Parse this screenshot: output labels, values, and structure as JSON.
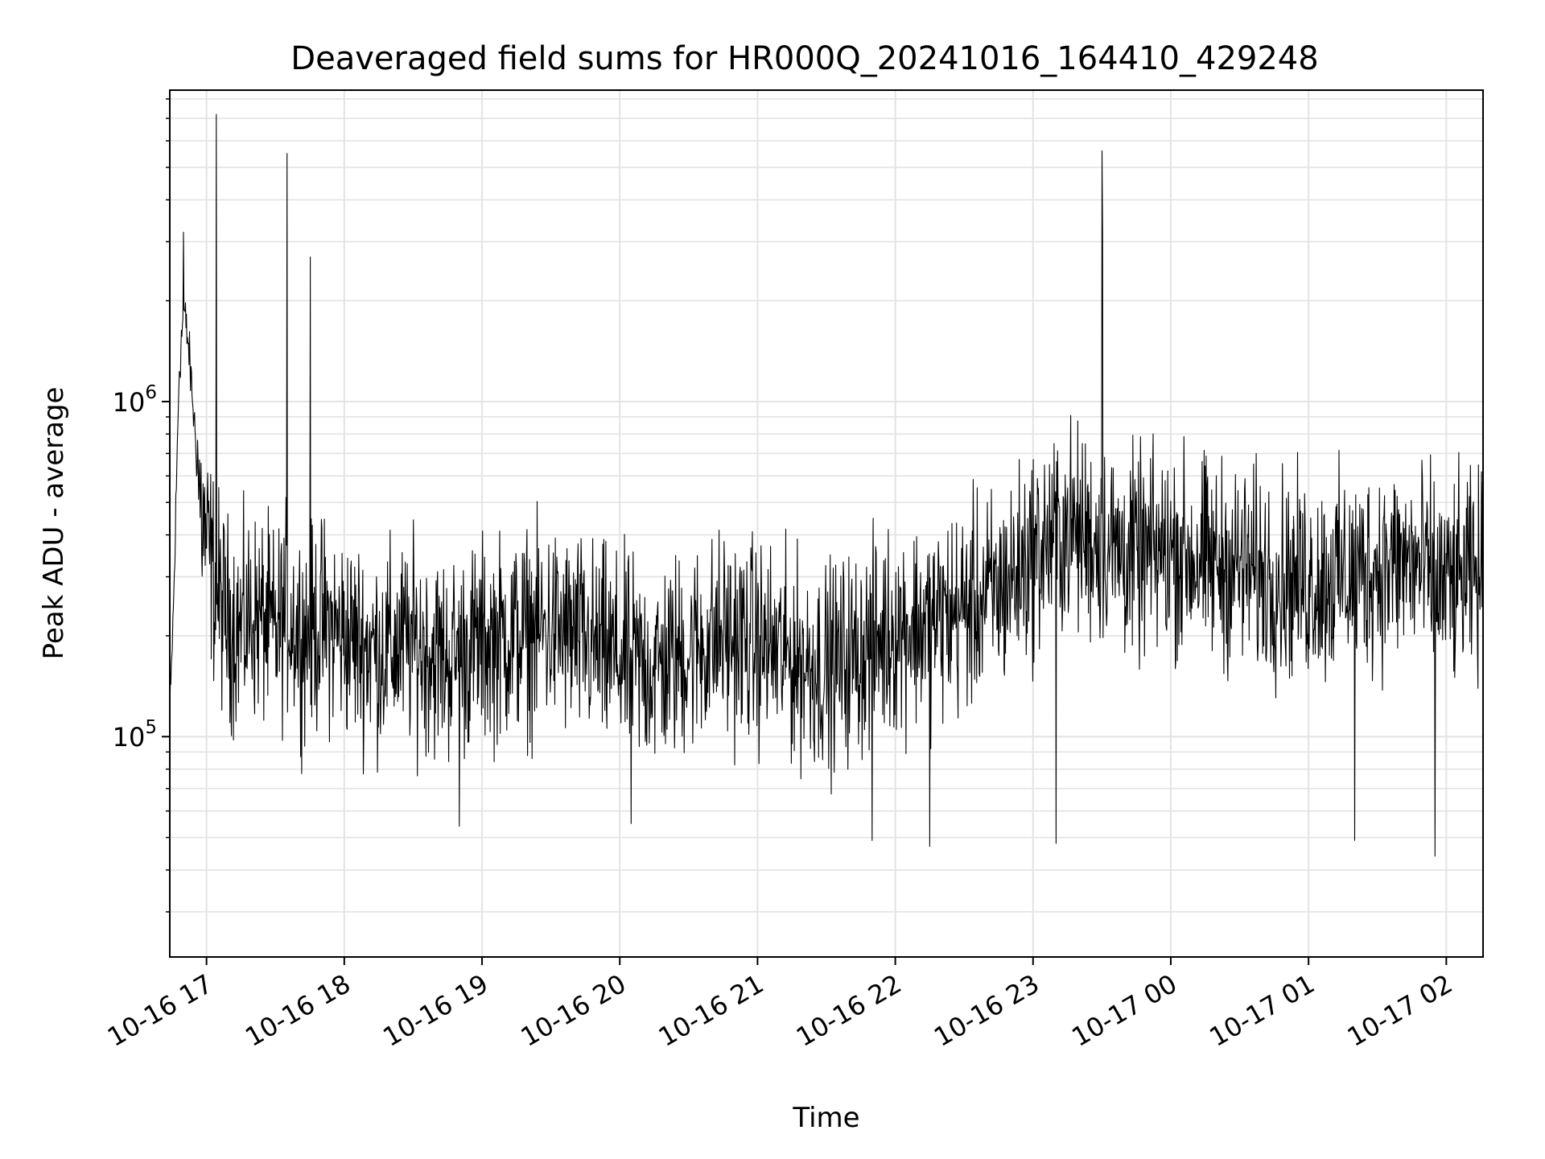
{
  "chart_data": {
    "type": "line",
    "title": "Deaveraged field sums for HR000Q_20241016_164410_429248",
    "xlabel": "Time",
    "ylabel": "Peak ADU - average",
    "yscale": "log",
    "ylim": [
      22000,
      8500000
    ],
    "xlim": [
      "2024-10-16 16:44",
      "2024-10-17 02:16"
    ],
    "x_ticks": [
      "10-16 17",
      "10-16 18",
      "10-16 19",
      "10-16 20",
      "10-16 21",
      "10-16 22",
      "10-16 23",
      "10-17 00",
      "10-17 01",
      "10-17 02"
    ],
    "y_ticks": [
      {
        "base": "10",
        "exp": "5",
        "value": 100000
      },
      {
        "base": "10",
        "exp": "6",
        "value": 1000000
      }
    ],
    "grid": true,
    "line_color": "#000000",
    "series": [
      {
        "x": [
          "2024-10-16 16:44",
          "2024-10-16 16:46",
          "2024-10-16 16:48",
          "2024-10-16 16:50",
          "2024-10-16 16:52",
          "2024-10-16 16:54",
          "2024-10-16 16:56",
          "2024-10-16 16:58",
          "2024-10-16 17:00",
          "2024-10-16 17:02",
          "2024-10-16 17:04",
          "2024-10-16 17:07",
          "2024-10-16 17:10",
          "2024-10-16 17:15",
          "2024-10-16 17:20",
          "2024-10-16 17:25",
          "2024-10-16 17:30",
          "2024-10-16 17:35",
          "2024-10-16 17:40",
          "2024-10-16 17:45",
          "2024-10-16 17:50",
          "2024-10-16 18:00",
          "2024-10-16 18:15",
          "2024-10-16 18:30",
          "2024-10-16 18:45",
          "2024-10-16 19:00",
          "2024-10-16 19:15",
          "2024-10-16 19:30",
          "2024-10-16 19:45",
          "2024-10-16 20:00",
          "2024-10-16 20:15",
          "2024-10-16 20:30",
          "2024-10-16 20:45",
          "2024-10-16 21:00",
          "2024-10-16 21:15",
          "2024-10-16 21:30",
          "2024-10-16 21:45",
          "2024-10-16 22:00",
          "2024-10-16 22:15",
          "2024-10-16 22:30",
          "2024-10-16 22:45",
          "2024-10-16 23:00",
          "2024-10-16 23:15",
          "2024-10-16 23:30",
          "2024-10-16 23:45",
          "2024-10-17 00:00",
          "2024-10-17 00:15",
          "2024-10-17 00:30",
          "2024-10-17 00:45",
          "2024-10-17 01:00",
          "2024-10-17 01:15",
          "2024-10-17 01:30",
          "2024-10-17 01:45",
          "2024-10-17 02:00",
          "2024-10-17 02:15"
        ],
        "y": [
          110000,
          300000,
          1200000,
          1900000,
          1500000,
          1000000,
          650000,
          450000,
          380000,
          330000,
          280000,
          240000,
          220000,
          210000,
          230000,
          220000,
          200000,
          240000,
          210000,
          200000,
          220000,
          200000,
          180000,
          190000,
          170000,
          190000,
          200000,
          210000,
          190000,
          170000,
          160000,
          180000,
          200000,
          190000,
          170000,
          160000,
          180000,
          210000,
          220000,
          240000,
          270000,
          350000,
          420000,
          380000,
          340000,
          360000,
          330000,
          320000,
          300000,
          290000,
          300000,
          320000,
          330000,
          280000,
          300000
        ],
        "noise_band_log10": 0.45,
        "spikes": [
          {
            "x": "2024-10-16 16:50",
            "y": 3200000
          },
          {
            "x": "2024-10-16 17:04",
            "y": 7200000
          },
          {
            "x": "2024-10-16 17:35",
            "y": 5500000
          },
          {
            "x": "2024-10-16 17:45",
            "y": 2700000
          },
          {
            "x": "2024-10-16 23:30",
            "y": 5600000
          },
          {
            "x": "2024-10-16 23:30",
            "y": 3200000
          }
        ],
        "dips": [
          {
            "x": "2024-10-16 18:50",
            "y": 54000
          },
          {
            "x": "2024-10-16 20:05",
            "y": 55000
          },
          {
            "x": "2024-10-16 21:50",
            "y": 49000
          },
          {
            "x": "2024-10-16 22:15",
            "y": 47000
          },
          {
            "x": "2024-10-16 23:10",
            "y": 48000
          },
          {
            "x": "2024-10-17 01:20",
            "y": 49000
          },
          {
            "x": "2024-10-17 01:55",
            "y": 44000
          }
        ]
      }
    ]
  }
}
